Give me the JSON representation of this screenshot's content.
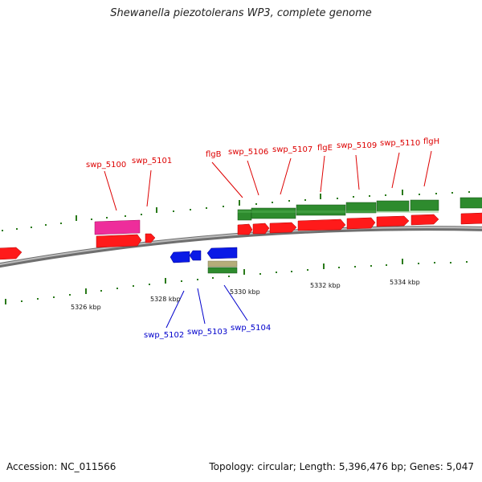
{
  "title": "Shewanella piezotolerans WP3, complete genome",
  "accession": "Accession: NC_011566",
  "summary": "Topology: circular; Length: 5,396,476 bp; Genes: 5,047",
  "colors": {
    "label_top": "#dd0000",
    "label_bottom": "#0000cc",
    "gene_red": "#ff1a1a",
    "gene_green": "#2e8b2e",
    "gene_pink": "#ee2d9b",
    "gene_blue": "#0a1ae6",
    "gene_tan": "#b5ad7a",
    "backbone": "#8c8c8c",
    "tick": "#2a7a1a"
  },
  "genome_view": {
    "top_labels": [
      "swp_5100",
      "swp_5101",
      "flgB",
      "swp_5106",
      "swp_5107",
      "flgE",
      "swp_5109",
      "swp_5110",
      "flgH"
    ],
    "bottom_labels": [
      "swp_5102",
      "swp_5103",
      "swp_5104"
    ],
    "scale_labels": [
      "5326 kbp",
      "5328 kbp",
      "5330 kbp",
      "5332 kbp",
      "5334 kbp"
    ]
  }
}
